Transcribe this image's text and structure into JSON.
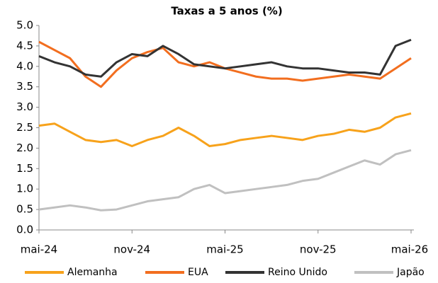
{
  "chart_data": {
    "type": "line",
    "title": "Taxas a 5 anos (%)",
    "x": [
      "2024-05",
      "2024-06",
      "2024-07",
      "2024-08",
      "2024-09",
      "2024-10",
      "2024-11",
      "2024-12",
      "2025-01",
      "2025-02",
      "2025-03",
      "2025-04",
      "2025-05",
      "2025-06",
      "2025-07",
      "2025-08",
      "2025-09",
      "2025-10",
      "2025-11",
      "2025-12",
      "2026-01",
      "2026-02",
      "2026-03",
      "2026-04",
      "2026-05"
    ],
    "xlim": [
      "2024-05",
      "2026-05"
    ],
    "xticks": [
      {
        "value": "2024-05",
        "label": "mai-24"
      },
      {
        "value": "2024-11",
        "label": "nov-24"
      },
      {
        "value": "2025-05",
        "label": "mai-25"
      },
      {
        "value": "2025-11",
        "label": "nov-25"
      },
      {
        "value": "2026-05",
        "label": "mai-26"
      }
    ],
    "ylim": [
      0,
      5
    ],
    "yticks": [
      {
        "value": 0,
        "label": "0.0"
      },
      {
        "value": 0.5,
        "label": "0.5"
      },
      {
        "value": 1,
        "label": "1.0"
      },
      {
        "value": 1.5,
        "label": "1.5"
      },
      {
        "value": 2,
        "label": "2.0"
      },
      {
        "value": 2.5,
        "label": "2.5"
      },
      {
        "value": 3,
        "label": "3.0"
      },
      {
        "value": 3.5,
        "label": "3.5"
      },
      {
        "value": 4,
        "label": "4.0"
      },
      {
        "value": 4.5,
        "label": "4.5"
      },
      {
        "value": 5,
        "label": "5.0"
      }
    ],
    "series": [
      {
        "name": "Alemanha",
        "color": "#f7a21b",
        "values": [
          2.55,
          2.6,
          2.4,
          2.2,
          2.15,
          2.2,
          2.05,
          2.2,
          2.3,
          2.5,
          2.3,
          2.05,
          2.1,
          2.2,
          2.25,
          2.3,
          2.25,
          2.2,
          2.3,
          2.35,
          2.45,
          2.4,
          2.5,
          2.75,
          2.85
        ]
      },
      {
        "name": "EUA",
        "color": "#f26e1f",
        "values": [
          4.6,
          4.4,
          4.2,
          3.75,
          3.5,
          3.9,
          4.2,
          4.35,
          4.45,
          4.1,
          4.0,
          4.1,
          3.95,
          3.85,
          3.75,
          3.7,
          3.7,
          3.65,
          3.7,
          3.75,
          3.8,
          3.75,
          3.7,
          3.95,
          4.2
        ]
      },
      {
        "name": "Reino Unido",
        "color": "#333333",
        "values": [
          4.25,
          4.1,
          4.0,
          3.8,
          3.75,
          4.1,
          4.3,
          4.25,
          4.5,
          4.3,
          4.05,
          4.0,
          3.95,
          4.0,
          4.05,
          4.1,
          4.0,
          3.95,
          3.95,
          3.9,
          3.85,
          3.85,
          3.8,
          4.5,
          4.65
        ]
      },
      {
        "name": "Japão",
        "color": "#c0c0c0",
        "values": [
          0.5,
          0.55,
          0.6,
          0.55,
          0.48,
          0.5,
          0.6,
          0.7,
          0.75,
          0.8,
          1.0,
          1.1,
          0.9,
          0.95,
          1.0,
          1.05,
          1.1,
          1.2,
          1.25,
          1.4,
          1.55,
          1.7,
          1.6,
          1.85,
          1.95
        ]
      }
    ]
  }
}
